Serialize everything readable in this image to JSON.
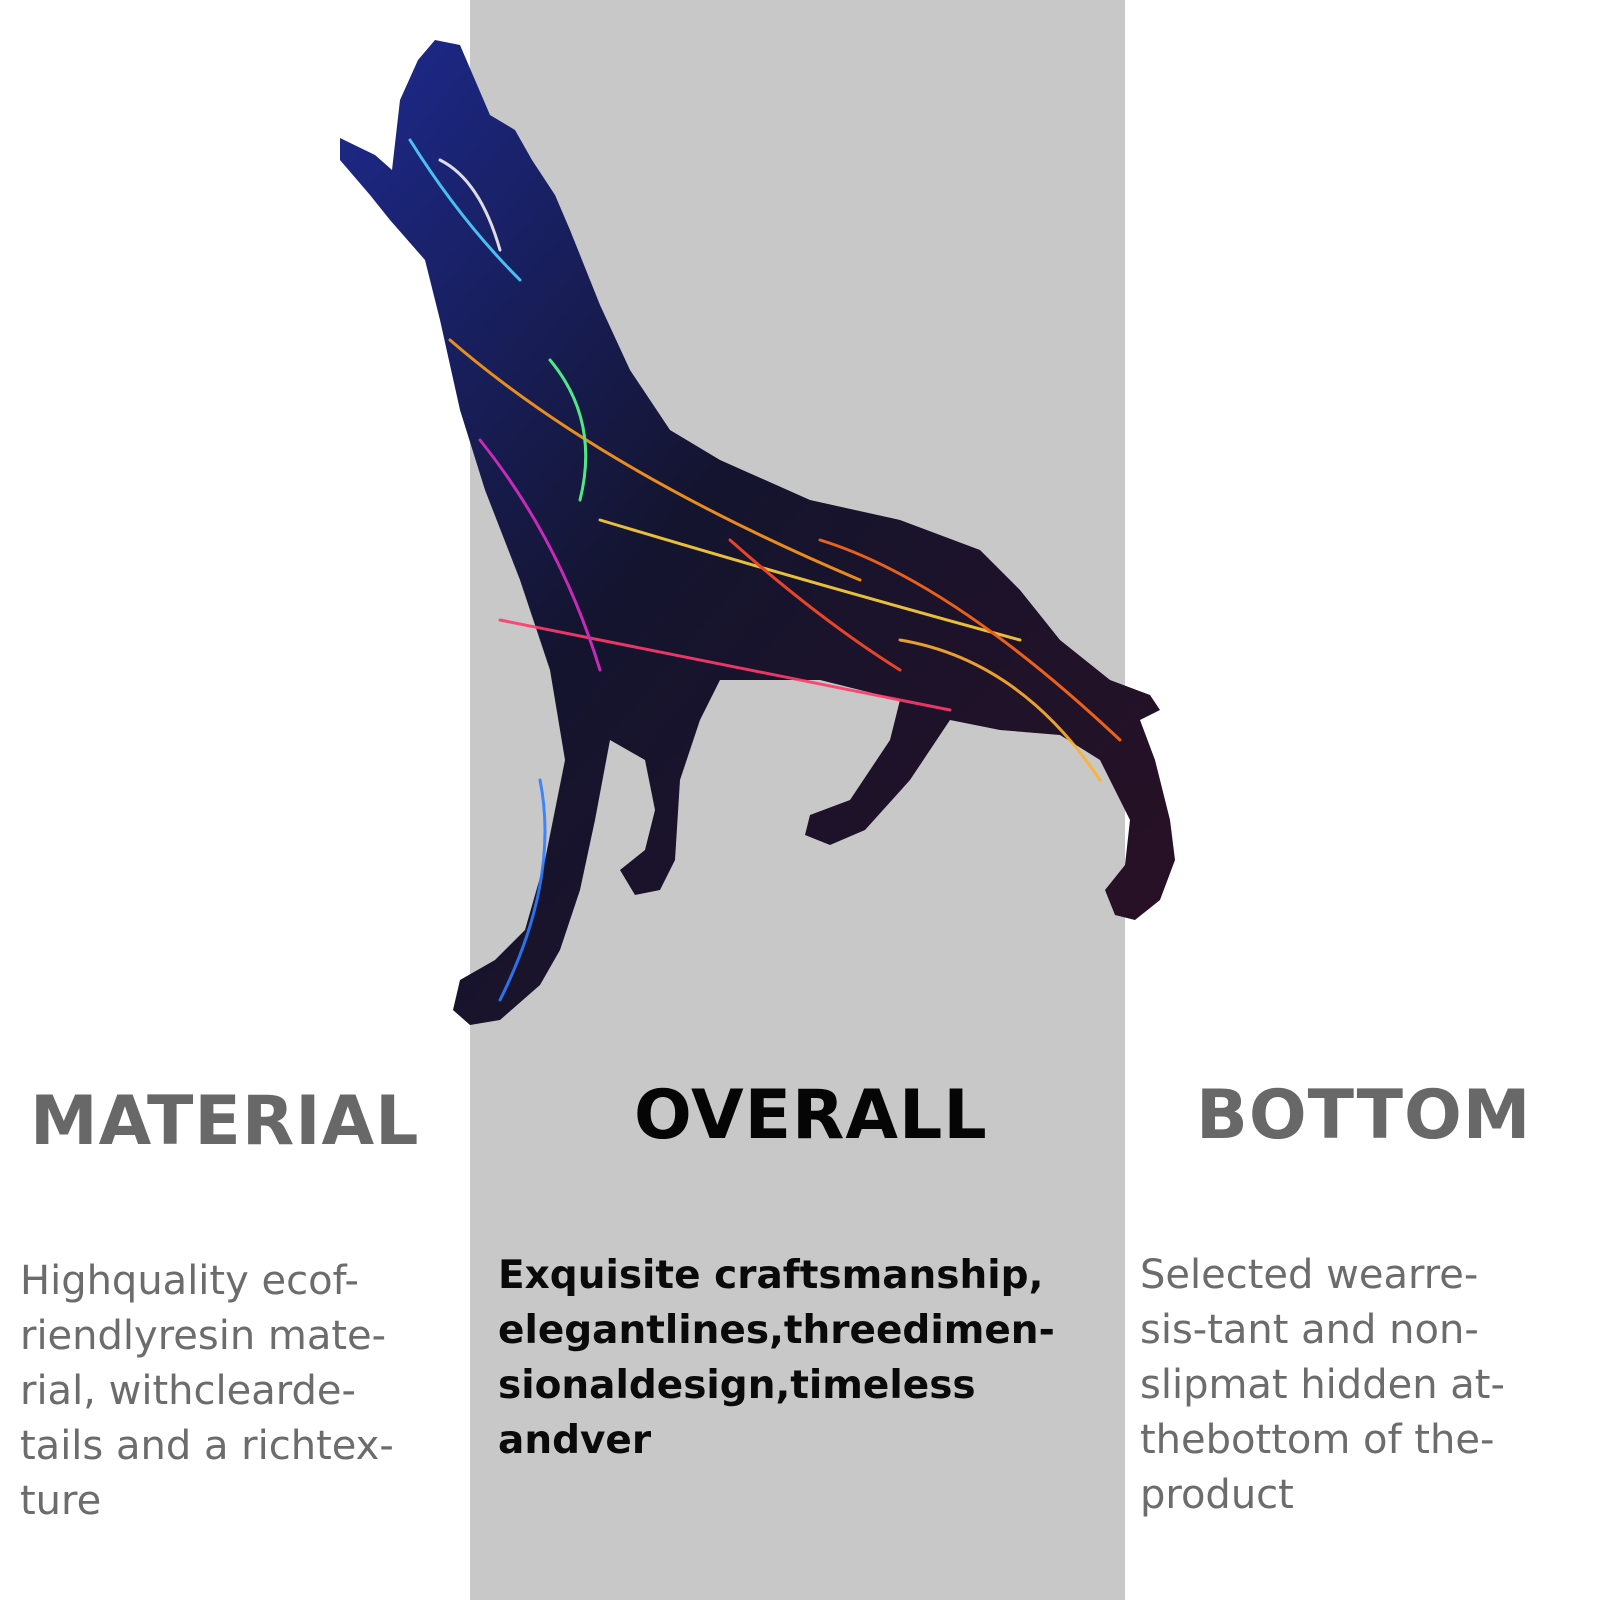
{
  "panels": [
    {
      "heading": "MATERIAL",
      "lines": [
        "Highquality ecof-",
        "riendlyresin mate-",
        "rial, withclearde-",
        "tails and a richtex-",
        "ture"
      ]
    },
    {
      "heading": "OVERALL",
      "lines": [
        "Exquisite craftsmanship,",
        "elegantlines,threedimen-",
        "sionaldesign,timeless",
        "andver"
      ]
    },
    {
      "heading": "BOTTOM",
      "lines": [
        "Selected wearre-",
        "sis-tant and non-",
        "slipmat hidden at-",
        "thebottom of the-",
        "product"
      ]
    }
  ],
  "colors": {
    "background": "#ffffff",
    "center_band": "#c8c8c8",
    "muted_heading": "#686868",
    "dark_heading": "#050505",
    "muted_text": "#6c6c6c",
    "dark_text": "#0a0a0a"
  },
  "image": "howling-wolf-graffiti-sculpture"
}
